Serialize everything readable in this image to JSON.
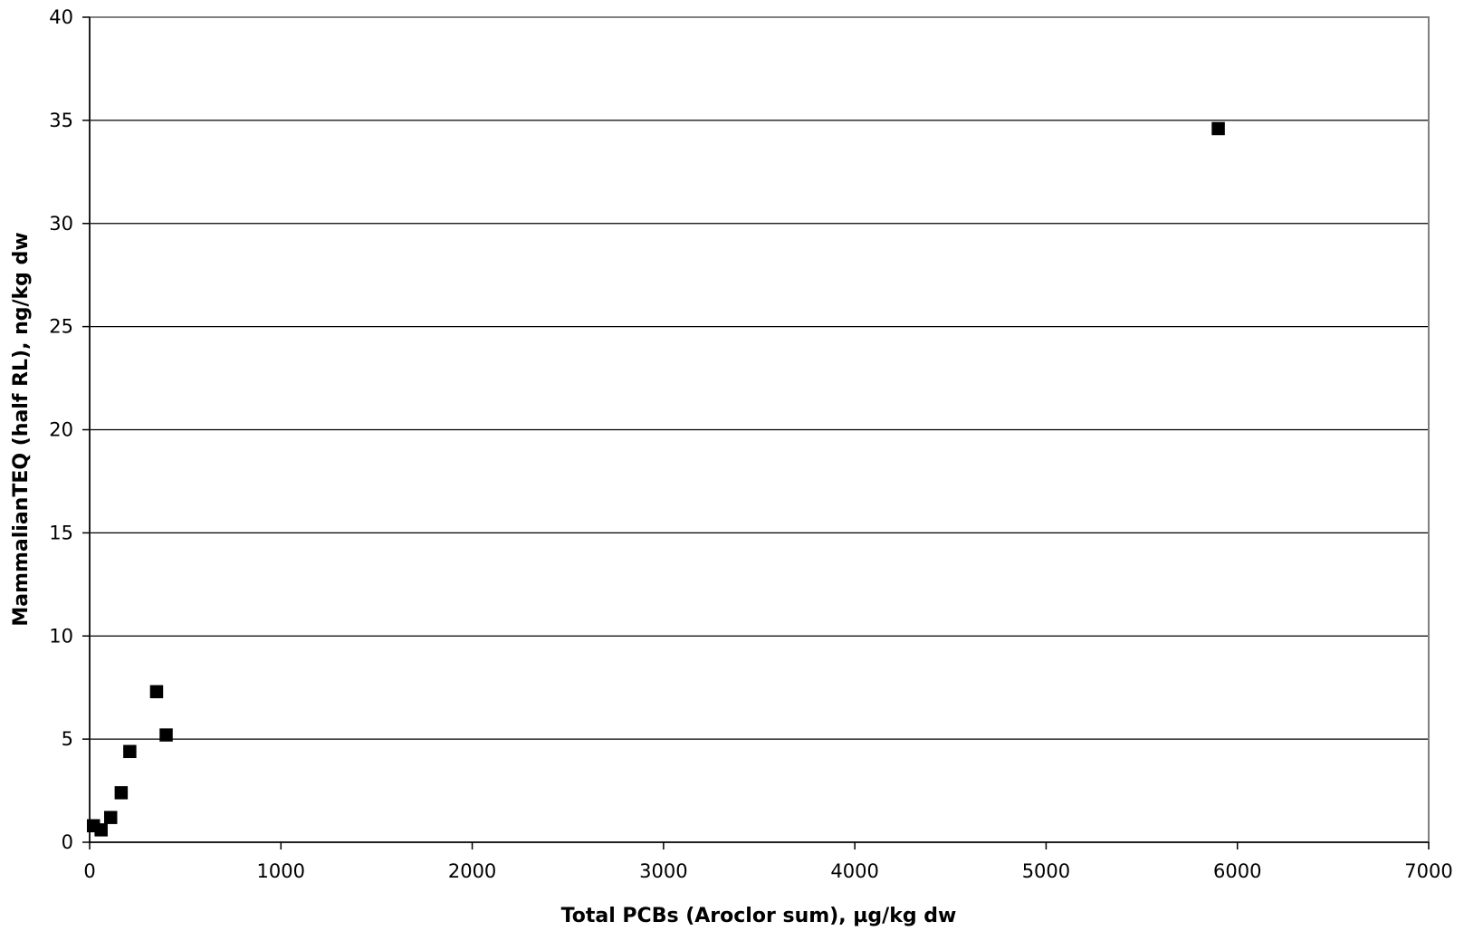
{
  "chart_data": {
    "type": "scatter",
    "title": "",
    "xlabel": "Total PCBs (Aroclor sum), µg/kg dw",
    "ylabel": "MammalianTEQ (half RL), ng/kg dw",
    "xlim": [
      0,
      7000
    ],
    "ylim": [
      0,
      40
    ],
    "x_ticks": [
      "0",
      "1000",
      "2000",
      "3000",
      "4000",
      "5000",
      "6000",
      "7000"
    ],
    "y_ticks": [
      "0",
      "5",
      "10",
      "15",
      "20",
      "25",
      "30",
      "35",
      "40"
    ],
    "grid": "horizontal major gridlines",
    "legend": "none",
    "marker": "square",
    "marker_color": "#000000",
    "series": [
      {
        "points": [
          {
            "x": 20,
            "y": 0.8
          },
          {
            "x": 60,
            "y": 0.6
          },
          {
            "x": 110,
            "y": 1.2
          },
          {
            "x": 165,
            "y": 2.4
          },
          {
            "x": 210,
            "y": 4.4
          },
          {
            "x": 350,
            "y": 7.3
          },
          {
            "x": 400,
            "y": 5.2
          },
          {
            "x": 5900,
            "y": 34.6
          }
        ]
      }
    ]
  }
}
